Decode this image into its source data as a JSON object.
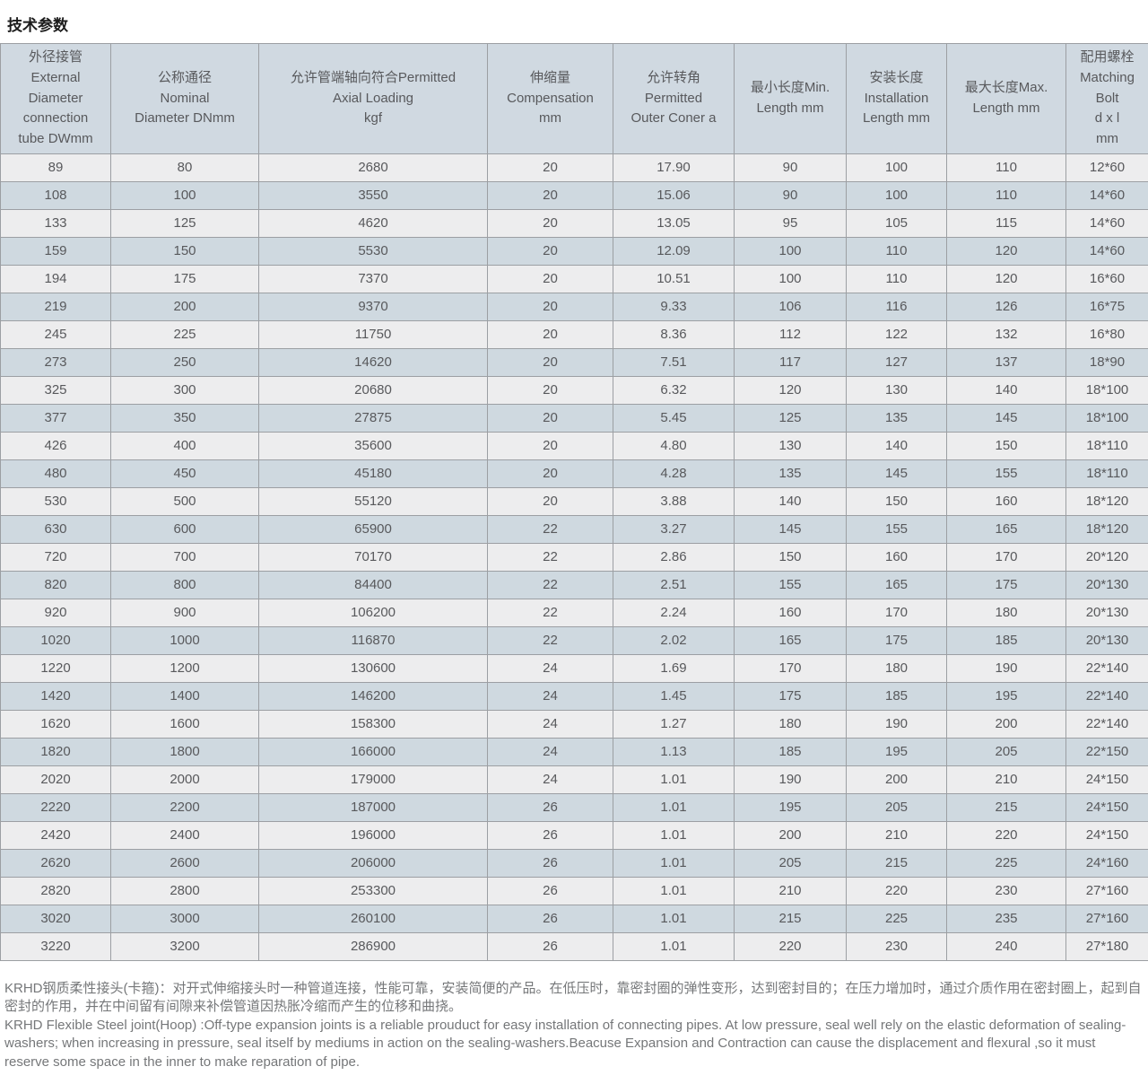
{
  "page_title": "技术参数",
  "table": {
    "headers": [
      "外径接管\nExternal\nDiameter\nconnection\ntube DWmm",
      "公称通径\nNominal\nDiameter DNmm",
      "允许管端轴向符合Permitted\nAxial Loading\nkgf",
      "伸缩量\nCompensation\nmm",
      "允许转角\nPermitted\nOuter Coner a",
      "最小长度Min.\nLength mm",
      "安装长度\nInstallation\nLength mm",
      "最大长度Max.\nLength mm",
      "配用螺栓\nMatching\nBolt\nd x l\nmm"
    ],
    "rows": [
      [
        "89",
        "80",
        "2680",
        "20",
        "17.90",
        "90",
        "100",
        "110",
        "12*60"
      ],
      [
        "108",
        "100",
        "3550",
        "20",
        "15.06",
        "90",
        "100",
        "110",
        "14*60"
      ],
      [
        "133",
        "125",
        "4620",
        "20",
        "13.05",
        "95",
        "105",
        "115",
        "14*60"
      ],
      [
        "159",
        "150",
        "5530",
        "20",
        "12.09",
        "100",
        "110",
        "120",
        "14*60"
      ],
      [
        "194",
        "175",
        "7370",
        "20",
        "10.51",
        "100",
        "110",
        "120",
        "16*60"
      ],
      [
        "219",
        "200",
        "9370",
        "20",
        "9.33",
        "106",
        "116",
        "126",
        "16*75"
      ],
      [
        "245",
        "225",
        "11750",
        "20",
        "8.36",
        "112",
        "122",
        "132",
        "16*80"
      ],
      [
        "273",
        "250",
        "14620",
        "20",
        "7.51",
        "117",
        "127",
        "137",
        "18*90"
      ],
      [
        "325",
        "300",
        "20680",
        "20",
        "6.32",
        "120",
        "130",
        "140",
        "18*100"
      ],
      [
        "377",
        "350",
        "27875",
        "20",
        "5.45",
        "125",
        "135",
        "145",
        "18*100"
      ],
      [
        "426",
        "400",
        "35600",
        "20",
        "4.80",
        "130",
        "140",
        "150",
        "18*110"
      ],
      [
        "480",
        "450",
        "45180",
        "20",
        "4.28",
        "135",
        "145",
        "155",
        "18*110"
      ],
      [
        "530",
        "500",
        "55120",
        "20",
        "3.88",
        "140",
        "150",
        "160",
        "18*120"
      ],
      [
        "630",
        "600",
        "65900",
        "22",
        "3.27",
        "145",
        "155",
        "165",
        "18*120"
      ],
      [
        "720",
        "700",
        "70170",
        "22",
        "2.86",
        "150",
        "160",
        "170",
        "20*120"
      ],
      [
        "820",
        "800",
        "84400",
        "22",
        "2.51",
        "155",
        "165",
        "175",
        "20*130"
      ],
      [
        "920",
        "900",
        "106200",
        "22",
        "2.24",
        "160",
        "170",
        "180",
        "20*130"
      ],
      [
        "1020",
        "1000",
        "116870",
        "22",
        "2.02",
        "165",
        "175",
        "185",
        "20*130"
      ],
      [
        "1220",
        "1200",
        "130600",
        "24",
        "1.69",
        "170",
        "180",
        "190",
        "22*140"
      ],
      [
        "1420",
        "1400",
        "146200",
        "24",
        "1.45",
        "175",
        "185",
        "195",
        "22*140"
      ],
      [
        "1620",
        "1600",
        "158300",
        "24",
        "1.27",
        "180",
        "190",
        "200",
        "22*140"
      ],
      [
        "1820",
        "1800",
        "166000",
        "24",
        "1.13",
        "185",
        "195",
        "205",
        "22*150"
      ],
      [
        "2020",
        "2000",
        "179000",
        "24",
        "1.01",
        "190",
        "200",
        "210",
        "24*150"
      ],
      [
        "2220",
        "2200",
        "187000",
        "26",
        "1.01",
        "195",
        "205",
        "215",
        "24*150"
      ],
      [
        "2420",
        "2400",
        "196000",
        "26",
        "1.01",
        "200",
        "210",
        "220",
        "24*150"
      ],
      [
        "2620",
        "2600",
        "206000",
        "26",
        "1.01",
        "205",
        "215",
        "225",
        "24*160"
      ],
      [
        "2820",
        "2800",
        "253300",
        "26",
        "1.01",
        "210",
        "220",
        "230",
        "27*160"
      ],
      [
        "3020",
        "3000",
        "260100",
        "26",
        "1.01",
        "215",
        "225",
        "235",
        "27*160"
      ],
      [
        "3220",
        "3200",
        "286900",
        "26",
        "1.01",
        "220",
        "230",
        "240",
        "27*180"
      ]
    ]
  },
  "notes": {
    "cn": "KRHD钢质柔性接头(卡箍)：对开式伸缩接头时一种管道连接，性能可靠，安装简便的产品。在低压时，靠密封圈的弹性变形，达到密封目的；在压力增加时，通过介质作用在密封圈上，起到自密封的作用，并在中间留有间隙来补偿管道因热胀冷缩而产生的位移和曲挠。",
    "en": "KRHD Flexible Steel joint(Hoop) :Off-type expansion joints is a reliable prouduct for easy installation of connecting pipes. At low pressure, seal well rely on the elastic deformation of sealing-washers; when increasing in pressure, seal itself by mediums in action on the sealing-washers.Beacuse Expansion and Contraction can cause the displacement and flexural ,so it must reserve some space in the inner to make reparation of pipe."
  },
  "colors": {
    "header_row_bg": "#d0d9e1",
    "odd_row_bg": "#ededee",
    "even_row_bg": "#cfd9e0",
    "border": "#9c9fa3",
    "cell_text": "#58595c",
    "note_text": "#757779"
  }
}
